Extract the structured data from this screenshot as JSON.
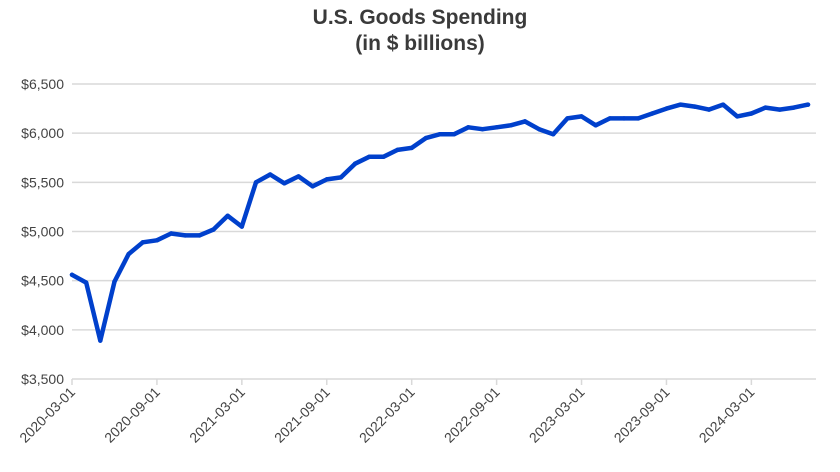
{
  "chart_data": {
    "type": "line",
    "title": "U.S. Goods Spending",
    "subtitle": "(in $ billions)",
    "xlabel": "",
    "ylabel": "",
    "ylim": [
      3500,
      6500
    ],
    "yticks": [
      3500,
      4000,
      4500,
      5000,
      5500,
      6000,
      6500
    ],
    "ytick_labels": [
      "$3,500",
      "$4,000",
      "$4,500",
      "$5,000",
      "$5,500",
      "$6,000",
      "$6,500"
    ],
    "xtick_labels": [
      "2020-03-01",
      "2020-09-01",
      "2021-03-01",
      "2021-09-01",
      "2022-03-01",
      "2022-09-01",
      "2023-03-01",
      "2023-09-01",
      "2024-03-01"
    ],
    "grid": "horizontal",
    "line_color": "#0040cc",
    "x_start": "2020-03",
    "x_frequency": "monthly",
    "values": [
      4560,
      4480,
      3890,
      4490,
      4770,
      4890,
      4910,
      4980,
      4960,
      4960,
      5020,
      5160,
      5050,
      5500,
      5580,
      5490,
      5560,
      5460,
      5530,
      5550,
      5690,
      5760,
      5760,
      5830,
      5850,
      5950,
      5990,
      5990,
      6060,
      6040,
      6060,
      6080,
      6120,
      6040,
      5990,
      6150,
      6170,
      6080,
      6150,
      6150,
      6150,
      6200,
      6250,
      6290,
      6270,
      6240,
      6290,
      6170,
      6200,
      6260,
      6240,
      6260,
      6290
    ]
  }
}
